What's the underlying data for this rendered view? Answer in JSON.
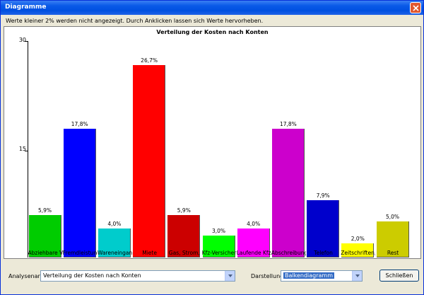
{
  "window": {
    "title": "Diagramme"
  },
  "info_text": "Werte kleiner 2% werden nicht angezeigt. Durch Anklicken lassen sich Werte hervorheben.",
  "chart_data": {
    "type": "bar",
    "title": "Verteilung der Kosten nach Konten",
    "ylim": [
      0,
      30
    ],
    "yticks": [
      "30",
      "15"
    ],
    "categories": [
      "Abziehbare V",
      "Fremdleistung",
      "Wareneingan",
      "Miete",
      "Gas, Strom,",
      "Kfz-Versicher",
      "Laufende Kfz-",
      "Abschreibung",
      "Telefon",
      "Zeitschriften,",
      "Rest"
    ],
    "values": [
      5.9,
      17.8,
      4.0,
      26.7,
      5.9,
      3.0,
      4.0,
      17.8,
      7.9,
      2.0,
      5.0
    ],
    "value_labels": [
      "5,9%",
      "17,8%",
      "4,0%",
      "26,7%",
      "5,9%",
      "3,0%",
      "4,0%",
      "17,8%",
      "7,9%",
      "2,0%",
      "5,0%"
    ],
    "colors": [
      "#00CC00",
      "#0000FF",
      "#00CCCC",
      "#FF0000",
      "#CC0000",
      "#00FF00",
      "#FF00FF",
      "#CC00CC",
      "#0000CC",
      "#FFFF00",
      "#CCCC00"
    ]
  },
  "footer": {
    "analyse_label": "Analysenart",
    "analyse_value": "Verteilung der Kosten nach Konten",
    "darstellung_label": "Darstellung",
    "darstellung_value": "Balkendiagramm",
    "close_label": "Schließen"
  }
}
